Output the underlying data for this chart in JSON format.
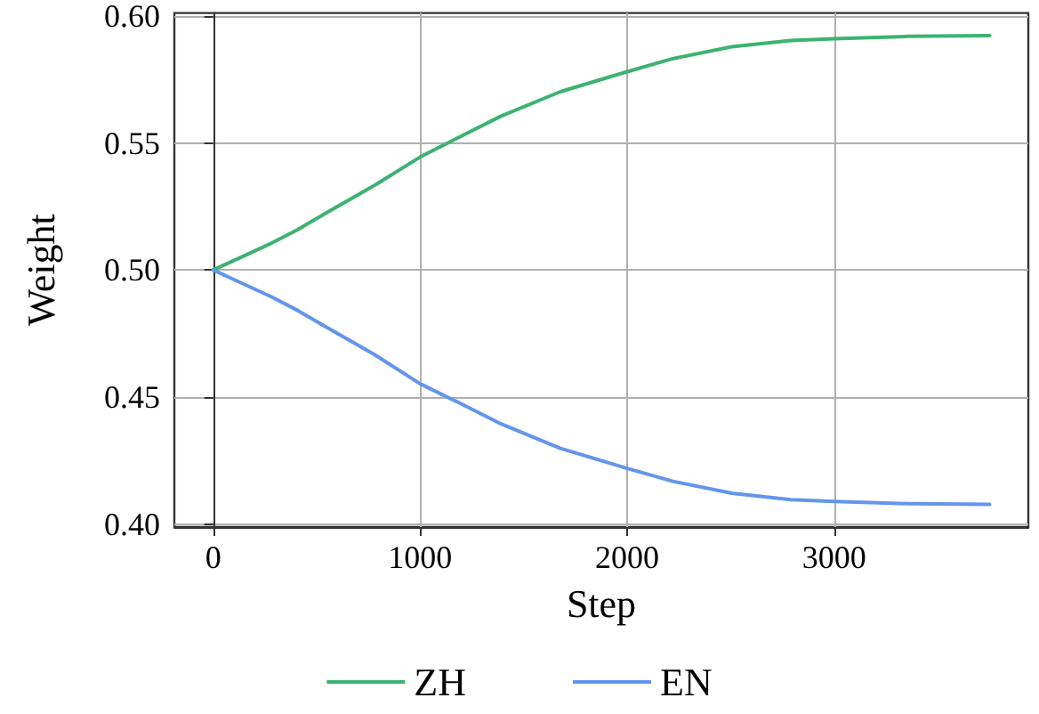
{
  "chart_data": {
    "type": "line",
    "xlabel": "Step",
    "ylabel": "Weight",
    "x": [
      0,
      280,
      408,
      536,
      779,
      1000,
      1191,
      1391,
      1677,
      2000,
      2220,
      2505,
      2790,
      3000,
      3361,
      3750
    ],
    "series": [
      {
        "name": "ZH",
        "color": "#3cb371",
        "values": [
          0.5,
          0.5105,
          0.5159,
          0.522,
          0.5333,
          0.5445,
          0.5524,
          0.5606,
          0.5702,
          0.5781,
          0.5832,
          0.5879,
          0.5904,
          0.5911,
          0.592,
          0.5923
        ]
      },
      {
        "name": "EN",
        "color": "#6495ed",
        "values": [
          0.5,
          0.4895,
          0.4841,
          0.478,
          0.4667,
          0.4552,
          0.4476,
          0.4394,
          0.4298,
          0.4219,
          0.4168,
          0.4121,
          0.4096,
          0.4089,
          0.408,
          0.4077
        ]
      }
    ],
    "xlim": [
      -187.5,
      3937.5
    ],
    "xticks": [
      0,
      1000,
      2000,
      3000
    ],
    "ylim": [
      0.3988,
      0.6012
    ],
    "yticks": [
      {
        "value": 0.4,
        "label": "0.40"
      },
      {
        "value": 0.45,
        "label": "0.45"
      },
      {
        "value": 0.5,
        "label": "0.50"
      },
      {
        "value": 0.55,
        "label": "0.55"
      },
      {
        "value": 0.6,
        "label": "0.60"
      }
    ],
    "grid": true,
    "legend": "bottom",
    "marker": "none",
    "line_style": "solid"
  }
}
